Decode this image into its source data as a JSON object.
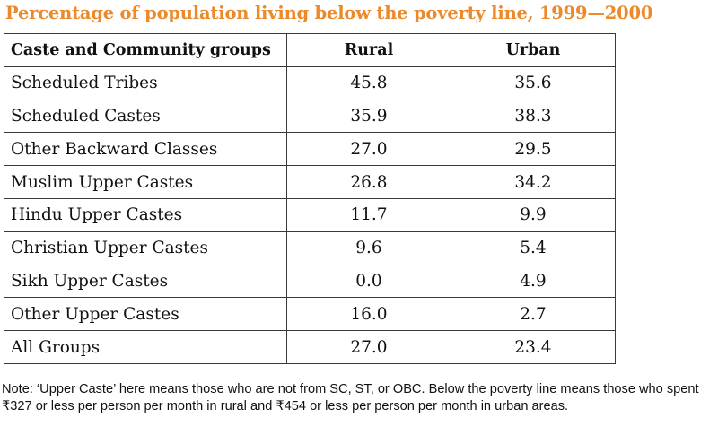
{
  "chart_data": {
    "type": "table",
    "title": "Percentage of population living below the poverty line, 1999—2000",
    "columns": [
      "Caste and Community groups",
      "Rural",
      "Urban"
    ],
    "rows": [
      {
        "group": "Scheduled Tribes",
        "rural": "45.8",
        "urban": "35.6"
      },
      {
        "group": "Scheduled Castes",
        "rural": "35.9",
        "urban": "38.3"
      },
      {
        "group": "Other Backward Classes",
        "rural": "27.0",
        "urban": "29.5"
      },
      {
        "group": "Muslim Upper Castes",
        "rural": "26.8",
        "urban": "34.2"
      },
      {
        "group": "Hindu Upper Castes",
        "rural": "11.7",
        "urban": "9.9"
      },
      {
        "group": "Christian Upper Castes",
        "rural": "9.6",
        "urban": "5.4"
      },
      {
        "group": "Sikh Upper Castes",
        "rural": "0.0",
        "urban": "4.9"
      },
      {
        "group": "Other Upper Castes",
        "rural": "16.0",
        "urban": "2.7"
      }
    ],
    "total": {
      "group": "All Groups",
      "rural": "27.0",
      "urban": "23.4"
    },
    "note": "Note: ‘Upper Caste’ here means those who are not from SC, ST, or OBC. Below the poverty line means those who spent ₹327 or less per person per month in rural and ₹454 or less per person per month in urban areas."
  },
  "colors": {
    "title": "#ec8a2b",
    "border": "#3a3a3a",
    "text": "#111111"
  }
}
